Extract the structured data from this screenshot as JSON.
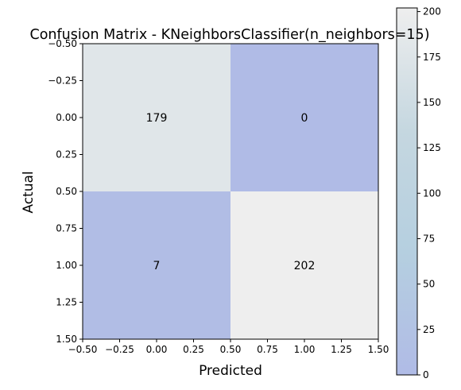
{
  "chart_data": {
    "type": "heatmap",
    "title": "Confusion Matrix - KNeighborsClassifier(n_neighbors=15)",
    "xlabel": "Predicted",
    "ylabel": "Actual",
    "xlim": [
      -0.5,
      1.5
    ],
    "ylim": [
      1.5,
      -0.5
    ],
    "x_ticks": [
      "−0.50",
      "−0.25",
      "0.00",
      "0.25",
      "0.50",
      "0.75",
      "1.00",
      "1.25",
      "1.50"
    ],
    "y_ticks": [
      "−0.50",
      "−0.25",
      "0.00",
      "0.25",
      "0.50",
      "0.75",
      "1.00",
      "1.25",
      "1.50"
    ],
    "matrix": [
      [
        179,
        0
      ],
      [
        7,
        202
      ]
    ],
    "colorbar": {
      "range": [
        0,
        202
      ],
      "ticks": [
        "0",
        "25",
        "50",
        "75",
        "100",
        "125",
        "150",
        "175",
        "200"
      ],
      "colors": [
        "#b0bbe6",
        "#b5cfe0",
        "#c5d7e0",
        "#eeeeee"
      ]
    },
    "grid": false
  }
}
